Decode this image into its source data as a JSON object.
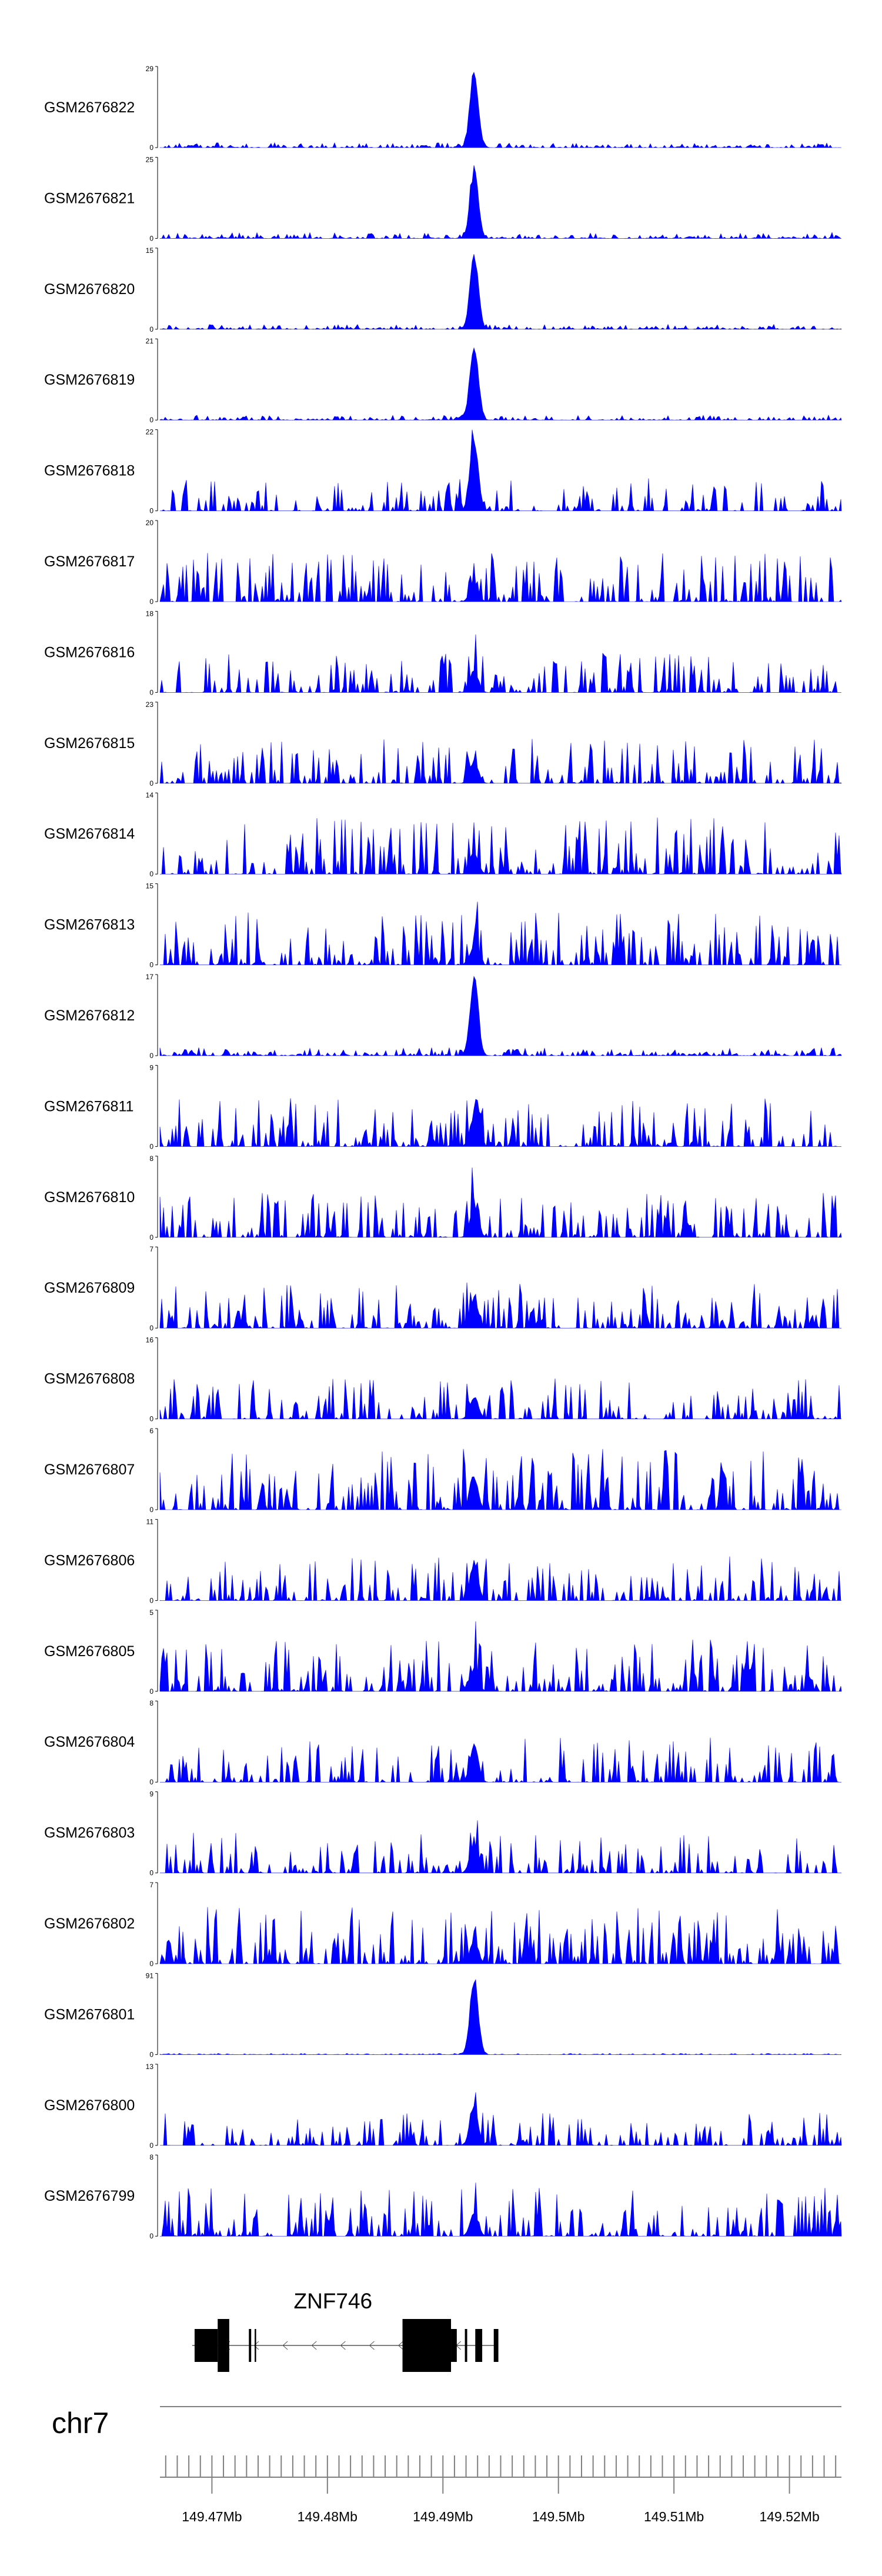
{
  "chart_data": {
    "type": "area",
    "title": "",
    "chromosome": "chr7",
    "xlim": [
      149.4655,
      149.5245
    ],
    "xunit": "Mb",
    "x_ticks": [
      149.47,
      149.48,
      149.49,
      149.5,
      149.51,
      149.52
    ],
    "x_tick_labels": [
      "149.47Mb",
      "149.48Mb",
      "149.49Mb",
      "149.5Mb",
      "149.51Mb",
      "149.52Mb"
    ],
    "color": "#0000ff",
    "peak_center": 149.4927,
    "tracks": [
      {
        "name": "GSM2676822",
        "ymax": 29,
        "ymin": 0,
        "peak": 1.0,
        "base": 0.12
      },
      {
        "name": "GSM2676821",
        "ymax": 25,
        "ymin": 0,
        "peak": 0.9,
        "base": 0.15
      },
      {
        "name": "GSM2676820",
        "ymax": 15,
        "ymin": 0,
        "peak": 1.0,
        "base": 0.12
      },
      {
        "name": "GSM2676819",
        "ymax": 21,
        "ymin": 0,
        "peak": 0.95,
        "base": 0.12
      },
      {
        "name": "GSM2676818",
        "ymax": 22,
        "ymin": 0,
        "peak": 0.95,
        "base": 0.4
      },
      {
        "name": "GSM2676817",
        "ymax": 20,
        "ymin": 0,
        "peak": 0.25,
        "base": 0.6
      },
      {
        "name": "GSM2676816",
        "ymax": 18,
        "ymin": 0,
        "peak": 0.3,
        "base": 0.5
      },
      {
        "name": "GSM2676815",
        "ymax": 23,
        "ymin": 0,
        "peak": 0.3,
        "base": 0.55
      },
      {
        "name": "GSM2676814",
        "ymax": 14,
        "ymin": 0,
        "peak": 0.3,
        "base": 0.7
      },
      {
        "name": "GSM2676813",
        "ymax": 15,
        "ymin": 0,
        "peak": 0.25,
        "base": 0.65
      },
      {
        "name": "GSM2676812",
        "ymax": 17,
        "ymin": 0,
        "peak": 1.0,
        "base": 0.2
      },
      {
        "name": "GSM2676811",
        "ymax": 9,
        "ymin": 0,
        "peak": 0.4,
        "base": 0.6
      },
      {
        "name": "GSM2676810",
        "ymax": 8,
        "ymin": 0,
        "peak": 0.4,
        "base": 0.55
      },
      {
        "name": "GSM2676809",
        "ymax": 7,
        "ymin": 0,
        "peak": 0.4,
        "base": 0.55
      },
      {
        "name": "GSM2676808",
        "ymax": 16,
        "ymin": 0,
        "peak": 0.3,
        "base": 0.5
      },
      {
        "name": "GSM2676807",
        "ymax": 6,
        "ymin": 0,
        "peak": 0.4,
        "base": 0.75
      },
      {
        "name": "GSM2676806",
        "ymax": 11,
        "ymin": 0,
        "peak": 0.5,
        "base": 0.55
      },
      {
        "name": "GSM2676805",
        "ymax": 5,
        "ymin": 0,
        "peak": 0.3,
        "base": 0.65
      },
      {
        "name": "GSM2676804",
        "ymax": 8,
        "ymin": 0,
        "peak": 0.5,
        "base": 0.55
      },
      {
        "name": "GSM2676803",
        "ymax": 9,
        "ymin": 0,
        "peak": 0.4,
        "base": 0.5
      },
      {
        "name": "GSM2676802",
        "ymax": 7,
        "ymin": 0,
        "peak": 0.3,
        "base": 0.7
      },
      {
        "name": "GSM2676801",
        "ymax": 91,
        "ymin": 0,
        "peak": 1.0,
        "base": 0.03
      },
      {
        "name": "GSM2676800",
        "ymax": 13,
        "ymin": 0,
        "peak": 0.5,
        "base": 0.4
      },
      {
        "name": "GSM2676799",
        "ymax": 8,
        "ymin": 0,
        "peak": 0.3,
        "base": 0.6
      }
    ],
    "gene": {
      "name": "ZNF746",
      "strand": "-",
      "start": 149.4683,
      "end": 149.4947,
      "exons": [
        [
          149.4685,
          149.4705
        ],
        [
          149.4705,
          149.4715
        ],
        [
          149.4732,
          149.4734
        ],
        [
          149.4737,
          149.4738
        ],
        [
          149.4865,
          149.4907
        ],
        [
          149.4907,
          149.4912
        ],
        [
          149.4919,
          149.4921
        ],
        [
          149.4928,
          149.4934
        ],
        [
          149.4944,
          149.4948
        ]
      ]
    }
  }
}
